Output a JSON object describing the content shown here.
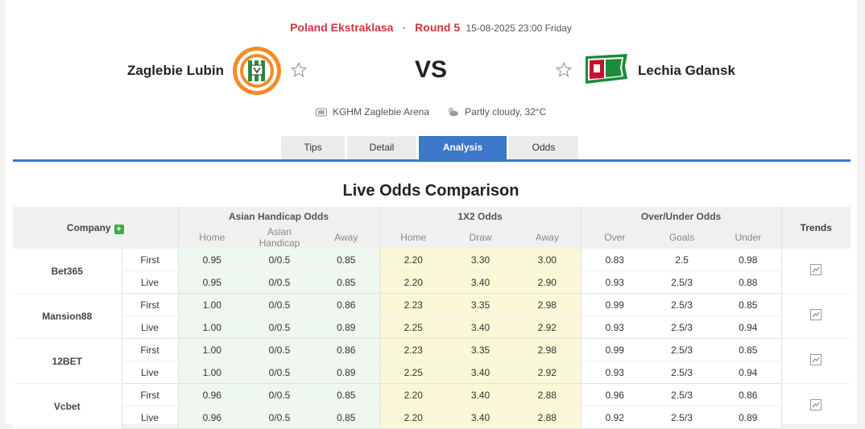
{
  "match": {
    "league": "Poland Ekstraklasa",
    "round": "Round 5",
    "datetime": "15-08-2025 23:00 Friday",
    "home": "Zaglebie Lubin",
    "away": "Lechia Gdansk",
    "vs": "VS",
    "venue": "KGHM Zaglebie Arena",
    "weather": "Partly cloudy, 32°C"
  },
  "tabs": [
    {
      "label": "Tips"
    },
    {
      "label": "Detail"
    },
    {
      "label": "Analysis"
    },
    {
      "label": "Odds"
    }
  ],
  "section_title": "Live Odds Comparison",
  "table": {
    "company_header": "Company",
    "groups": [
      "Asian Handicap Odds",
      "1X2 Odds",
      "Over/Under Odds"
    ],
    "trends_header": "Trends",
    "subheaders": [
      "Home",
      "Asian Handicap",
      "Away",
      "Home",
      "Draw",
      "Away",
      "Over",
      "Goals",
      "Under"
    ],
    "companies": [
      {
        "name": "Bet365",
        "rows": [
          {
            "type": "First",
            "v": [
              "0.95",
              "0/0.5",
              "0.85",
              "2.20",
              "3.30",
              "3.00",
              "0.83",
              "2.5",
              "0.98"
            ]
          },
          {
            "type": "Live",
            "v": [
              "0.95",
              "0/0.5",
              "0.85",
              "2.20",
              "3.40",
              "2.90",
              "0.93",
              "2.5/3",
              "0.88"
            ]
          }
        ]
      },
      {
        "name": "Mansion88",
        "rows": [
          {
            "type": "First",
            "v": [
              "1.00",
              "0/0.5",
              "0.86",
              "2.23",
              "3.35",
              "2.98",
              "0.99",
              "2.5/3",
              "0.85"
            ]
          },
          {
            "type": "Live",
            "v": [
              "1.00",
              "0/0.5",
              "0.89",
              "2.25",
              "3.40",
              "2.92",
              "0.93",
              "2.5/3",
              "0.94"
            ]
          }
        ]
      },
      {
        "name": "12BET",
        "rows": [
          {
            "type": "First",
            "v": [
              "1.00",
              "0/0.5",
              "0.86",
              "2.23",
              "3.35",
              "2.98",
              "0.99",
              "2.5/3",
              "0.85"
            ]
          },
          {
            "type": "Live",
            "v": [
              "1.00",
              "0/0.5",
              "0.89",
              "2.25",
              "3.40",
              "2.92",
              "0.93",
              "2.5/3",
              "0.94"
            ]
          }
        ]
      },
      {
        "name": "Vcbet",
        "rows": [
          {
            "type": "First",
            "v": [
              "0.96",
              "0/0.5",
              "0.85",
              "2.20",
              "3.40",
              "2.88",
              "0.96",
              "2.5/3",
              "0.86"
            ]
          },
          {
            "type": "Live",
            "v": [
              "0.96",
              "0/0.5",
              "0.85",
              "2.20",
              "3.40",
              "2.88",
              "0.92",
              "2.5/3",
              "0.89"
            ]
          }
        ]
      }
    ]
  },
  "icons": {
    "star": "star-outline-icon",
    "venue": "stadium-icon",
    "weather": "partly-cloudy-icon",
    "add": "plus-icon",
    "trend": "line-chart-icon"
  },
  "colors": {
    "accent": "#3c77c9",
    "league": "#d1343d",
    "ah_bg": "#eef8ee",
    "x12_bg": "#fbf8d8"
  }
}
